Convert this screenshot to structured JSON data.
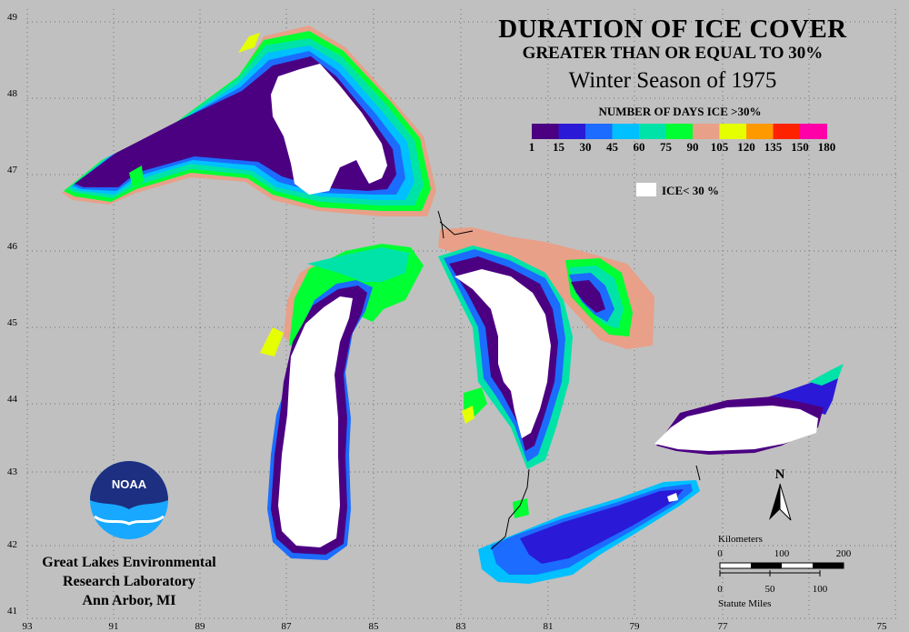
{
  "title": {
    "line1": "DURATION OF ICE COVER",
    "line2": "GREATER THAN OR EQUAL TO 30%",
    "line3": "Winter Season of 1975"
  },
  "legend": {
    "heading": "NUMBER OF DAYS ICE >30%",
    "classes": [
      {
        "range": "1-15",
        "color": "#4b0082"
      },
      {
        "range": "15-30",
        "color": "#2a1ad8"
      },
      {
        "range": "30-45",
        "color": "#1c6cff"
      },
      {
        "range": "45-60",
        "color": "#00c0ff"
      },
      {
        "range": "60-75",
        "color": "#00e3a8"
      },
      {
        "range": "75-90",
        "color": "#00ff33"
      },
      {
        "range": "90-105",
        "color": "#e8a088"
      },
      {
        "range": "105-120",
        "color": "#e5ff00"
      },
      {
        "range": "120-135",
        "color": "#ff9900"
      },
      {
        "range": "135-150",
        "color": "#ff2200"
      },
      {
        "range": "150-180",
        "color": "#ff00a8"
      }
    ],
    "tick_labels": [
      "1",
      "15",
      "30",
      "45",
      "60",
      "75",
      "90",
      "105",
      "120",
      "135",
      "150",
      "180"
    ],
    "no_ice_label": "ICE< 30 %",
    "no_ice_color": "#ffffff"
  },
  "latitude_labels": [
    "49",
    "48",
    "47",
    "46",
    "45",
    "44",
    "43",
    "42",
    "41"
  ],
  "longitude_labels": [
    "93",
    "91",
    "89",
    "87",
    "85",
    "83",
    "81",
    "79",
    "77",
    "75"
  ],
  "north_arrow_label": "N",
  "scale_bar": {
    "km_title": "Kilometers",
    "km_ticks": [
      "0",
      "100",
      "200"
    ],
    "mi_ticks": [
      "0",
      "50",
      "100"
    ],
    "mi_title": "Statute Miles"
  },
  "logo_text": "NOAA",
  "lab": {
    "line1": "Great Lakes Environmental",
    "line2": "Research Laboratory",
    "line3": "Ann Arbor, MI"
  },
  "colors": {
    "background": "#c0c0c0",
    "grid": "#707070",
    "noaa_dark": "#1c2f80",
    "noaa_light": "#18a8ff"
  }
}
